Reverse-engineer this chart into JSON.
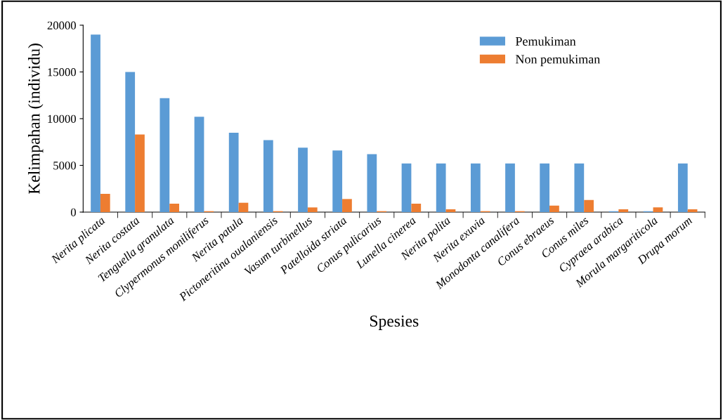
{
  "chart_data": {
    "type": "bar",
    "xlabel": "Spesies",
    "ylabel": "Kelimpahan (individu)",
    "categories": [
      "Nerita plicata",
      "Nerita costata",
      "Tenguella granulata",
      "Clypermonus moniliferus",
      "Nerita patula",
      "Pictoneritina oualaniensis",
      "Vasum turbinellus",
      "Patelloida striata",
      "Conus pulicarius",
      "Lunella cinerea",
      "Nerita polita",
      "Nerita exuvia",
      "Monodonta canalifera",
      "Conus ebraeus",
      "Conus miles",
      "Cypraea arabica",
      "Morula margariticola",
      "Drupa morum"
    ],
    "series": [
      {
        "name": "Pemukiman",
        "color": "#5b9bd5",
        "values": [
          19000,
          15000,
          12200,
          10200,
          8500,
          7700,
          6900,
          6600,
          6200,
          5200,
          5200,
          5200,
          5200,
          5200,
          5200,
          100,
          100,
          5200
        ]
      },
      {
        "name": "Non pemukiman",
        "color": "#ed7d31",
        "values": [
          1950,
          8300,
          900,
          100,
          1000,
          100,
          500,
          1400,
          100,
          900,
          300,
          100,
          100,
          700,
          1300,
          300,
          500,
          300
        ]
      }
    ],
    "ylim": [
      0,
      20000
    ],
    "yticks": [
      0,
      5000,
      10000,
      15000,
      20000
    ],
    "grid": false,
    "legend": "top right"
  }
}
